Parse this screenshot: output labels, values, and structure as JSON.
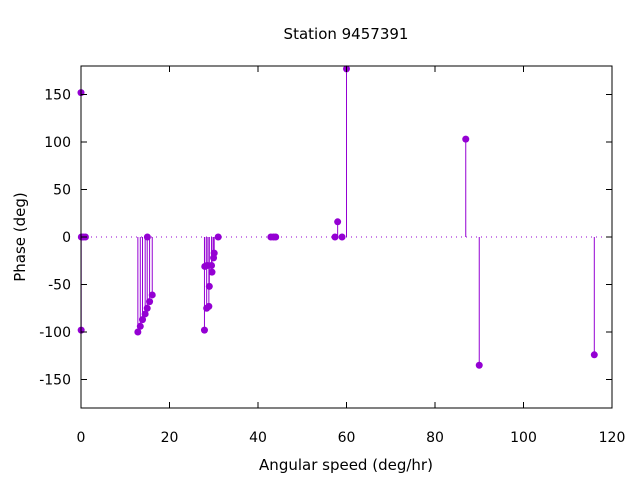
{
  "chart_data": {
    "type": "scatter",
    "style": "impulses",
    "title": "Station 9457391",
    "xlabel": "Angular speed (deg/hr)",
    "ylabel": "Phase (deg)",
    "xlim": [
      0,
      120
    ],
    "ylim": [
      -180,
      180
    ],
    "x_ticks": [
      0,
      20,
      40,
      60,
      80,
      100,
      120
    ],
    "y_ticks": [
      -150,
      -100,
      -50,
      0,
      50,
      100,
      150
    ],
    "grid": false,
    "zero_line": "dotted",
    "color": "#9400d3",
    "points": [
      {
        "x": 0.0,
        "y": 152
      },
      {
        "x": 0.04,
        "y": -98
      },
      {
        "x": 0.08,
        "y": 0
      },
      {
        "x": 0.5,
        "y": 0
      },
      {
        "x": 1.0,
        "y": 0
      },
      {
        "x": 12.85,
        "y": -100
      },
      {
        "x": 13.4,
        "y": -94
      },
      {
        "x": 13.9,
        "y": -87
      },
      {
        "x": 14.5,
        "y": -81
      },
      {
        "x": 14.96,
        "y": -75
      },
      {
        "x": 15.0,
        "y": 0
      },
      {
        "x": 15.5,
        "y": -68
      },
      {
        "x": 16.1,
        "y": -61
      },
      {
        "x": 27.9,
        "y": -98
      },
      {
        "x": 27.97,
        "y": -31
      },
      {
        "x": 28.4,
        "y": -75
      },
      {
        "x": 28.5,
        "y": -30
      },
      {
        "x": 28.9,
        "y": -73
      },
      {
        "x": 29.0,
        "y": -52
      },
      {
        "x": 29.5,
        "y": -30
      },
      {
        "x": 29.6,
        "y": -37
      },
      {
        "x": 29.96,
        "y": -22
      },
      {
        "x": 30.1,
        "y": -17
      },
      {
        "x": 31.0,
        "y": 0
      },
      {
        "x": 42.9,
        "y": 0
      },
      {
        "x": 43.5,
        "y": 0
      },
      {
        "x": 44.0,
        "y": 0
      },
      {
        "x": 57.4,
        "y": 0
      },
      {
        "x": 58.0,
        "y": 16
      },
      {
        "x": 59.0,
        "y": 0
      },
      {
        "x": 60.0,
        "y": 177
      },
      {
        "x": 86.95,
        "y": 103
      },
      {
        "x": 90.0,
        "y": -135
      },
      {
        "x": 116.0,
        "y": -124
      }
    ]
  }
}
